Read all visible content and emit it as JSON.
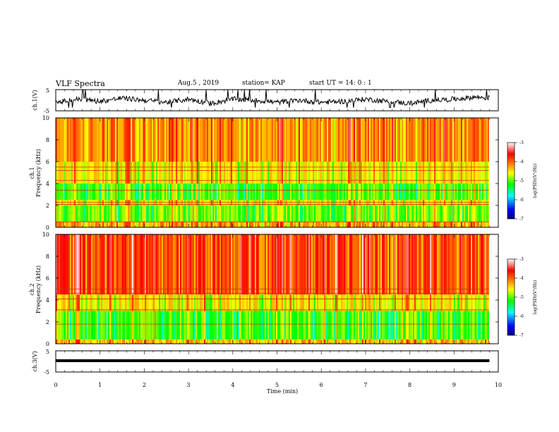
{
  "header": {
    "title": "VLF Spectra",
    "date": "Aug.5 , 2019",
    "station": "station= KAP",
    "start_time": "start UT = 14: 0 : 1"
  },
  "panels": {
    "ch1_wave": {
      "ylabel": "ch.1(V)",
      "ytick_top": "5",
      "ytick_bottom": "-5"
    },
    "ch1_spec": {
      "ylabel": "ch.1\nFrequency (kHz)",
      "yticks": [
        "0",
        "2",
        "4",
        "6",
        "8",
        "10"
      ]
    },
    "ch2_spec": {
      "ylabel": "ch.2\nFrequency (kHz)",
      "yticks": [
        "0",
        "2",
        "4",
        "6",
        "8",
        "10"
      ]
    },
    "ch3_wave": {
      "ylabel": "ch.3(V)",
      "ytick_top": "5",
      "ytick_bottom": "-5"
    }
  },
  "colorbar": {
    "label": "log(PSD)(V²/Hz)",
    "ticks": [
      "-3",
      "-4",
      "-5",
      "-6",
      "-7"
    ],
    "colors": [
      "#000080",
      "#0000ff",
      "#00ffff",
      "#00ff00",
      "#ffff00",
      "#ff8000",
      "#ff0000",
      "#ffffff"
    ]
  },
  "chart_data": [
    {
      "type": "line",
      "title": "VLF Spectra",
      "ylabel": "ch.1(V)",
      "ylim": [
        -5,
        5
      ],
      "xlim": [
        0,
        10
      ],
      "series": [
        {
          "x": [
            0,
            0.5,
            1,
            1.5,
            2,
            2.5,
            3,
            3.5,
            4,
            4.5,
            5,
            5.5,
            6,
            6.5,
            7,
            7.5,
            8,
            8.5,
            9,
            9.5,
            9.8
          ],
          "values": [
            -1,
            0.5,
            -0.5,
            1,
            0,
            -1,
            0.5,
            -1.5,
            0.5,
            0,
            -1,
            0,
            -1,
            -0.5,
            0.5,
            -0.5,
            -1.5,
            0,
            0.5,
            1.5,
            1
          ]
        }
      ]
    },
    {
      "type": "heatmap",
      "ylabel": "ch.1 Frequency (kHz)",
      "xlabel": "Time (min)",
      "xlim": [
        0,
        10
      ],
      "ylim": [
        0,
        10
      ],
      "log_psd_range": [
        -7,
        -3
      ],
      "levels": [
        {
          "f_khz": [
            0,
            0.5
          ],
          "log_psd": -4.2
        },
        {
          "f_khz": [
            0.5,
            2
          ],
          "log_psd": -4.9
        },
        {
          "f_khz": [
            2,
            2.5
          ],
          "log_psd": -4.5
        },
        {
          "f_khz": [
            2.5,
            4
          ],
          "log_psd": -5.0
        },
        {
          "f_khz": [
            4,
            6
          ],
          "log_psd": -4.5
        },
        {
          "f_khz": [
            6,
            10
          ],
          "log_psd": -4.1
        }
      ],
      "horizontal_lines_khz": [
        0.5,
        2.1,
        2.3,
        3.4,
        4.3,
        5.2,
        5.5
      ]
    },
    {
      "type": "heatmap",
      "ylabel": "ch.2 Frequency (kHz)",
      "xlabel": "Time (min)",
      "xlim": [
        0,
        10
      ],
      "ylim": [
        0,
        10
      ],
      "log_psd_range": [
        -7,
        -3
      ],
      "levels": [
        {
          "f_khz": [
            0,
            0.4
          ],
          "log_psd": -4.3
        },
        {
          "f_khz": [
            0.4,
            3
          ],
          "log_psd": -5.0
        },
        {
          "f_khz": [
            3,
            4.5
          ],
          "log_psd": -4.5
        },
        {
          "f_khz": [
            4.5,
            10
          ],
          "log_psd": -3.8
        }
      ],
      "horizontal_lines_khz": [
        1.8,
        3.1,
        4.1,
        4.6,
        5.0
      ]
    },
    {
      "type": "line",
      "ylabel": "ch.3(V)",
      "xlabel": "Time (min)",
      "ylim": [
        -5,
        5
      ],
      "xlim": [
        0,
        10
      ],
      "series": [
        {
          "x": [
            0,
            9.8
          ],
          "values": [
            0,
            0
          ]
        }
      ]
    }
  ],
  "xaxis": {
    "label": "Time (min)",
    "ticks": [
      "0",
      "1",
      "2",
      "3",
      "4",
      "5",
      "6",
      "7",
      "8",
      "9",
      "10"
    ]
  }
}
